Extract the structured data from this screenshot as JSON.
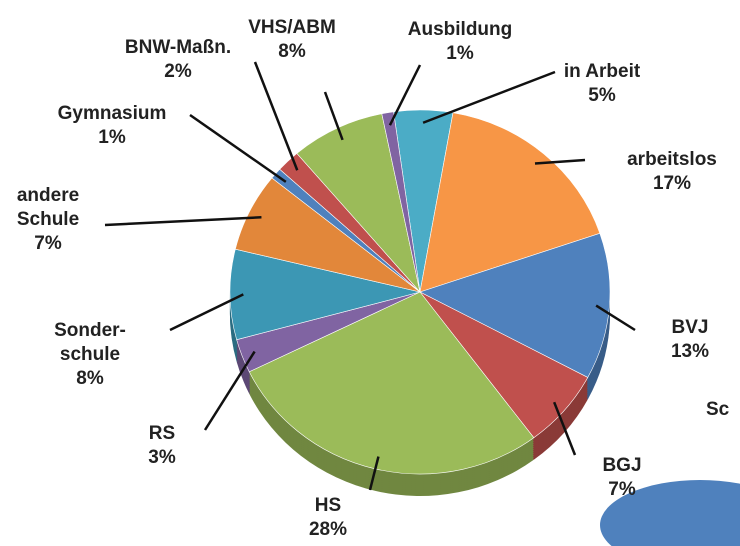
{
  "chart_data": {
    "type": "pie",
    "categories": [
      "in Arbeit",
      "arbeitslos",
      "BVJ",
      "BGJ",
      "HS",
      "RS",
      "Sonder-\nschule",
      "andere\nSchule",
      "Gymnasium",
      "BNW-Maßn.",
      "VHS/ABM",
      "Ausbildung"
    ],
    "values": [
      5,
      17,
      13,
      7,
      28,
      3,
      8,
      7,
      1,
      2,
      8,
      1
    ],
    "value_labels": [
      "5%",
      "17%",
      "13%",
      "7%",
      "28%",
      "3%",
      "8%",
      "7%",
      "1%",
      "2%",
      "8%",
      "1%"
    ],
    "colors": [
      "#4bacc6",
      "#f79646",
      "#4f81bd",
      "#c0504d",
      "#9bbb59",
      "#8064a2",
      "#3c97b4",
      "#e2873a",
      "#4f81bd",
      "#c0504d",
      "#9bbb59",
      "#8064a2"
    ]
  },
  "clipped_chart_title": "Sc"
}
